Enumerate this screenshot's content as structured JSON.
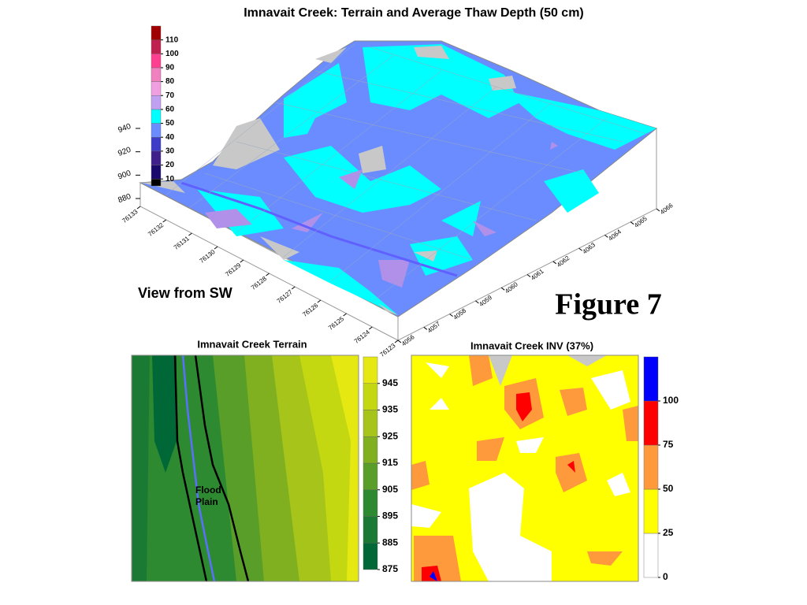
{
  "figure_label": "Figure 7",
  "chart_data": [
    {
      "type": "surface",
      "title": "Imnavait Creek: Terrain and Average Thaw Depth (50 cm)",
      "annotation": "View from SW",
      "xlim": [
        4056,
        4066
      ],
      "xticks": [
        4056,
        4057,
        4058,
        4059,
        4060,
        4061,
        4062,
        4063,
        4064,
        4065,
        4066
      ],
      "ylim": [
        76123,
        76133
      ],
      "yticks": [
        76123,
        76124,
        76125,
        76126,
        76127,
        76128,
        76129,
        76130,
        76131,
        76132,
        76133
      ],
      "zlim": [
        880,
        940
      ],
      "zticks": [
        880,
        900,
        920,
        940
      ],
      "colorbar": {
        "lim": [
          5,
          120
        ],
        "ticks": [
          10,
          20,
          30,
          40,
          50,
          60,
          70,
          80,
          90,
          100,
          110
        ],
        "colors": [
          "#000000",
          "#1a0a6e",
          "#40208a",
          "#3c3cc8",
          "#6b8cff",
          "#00ffff",
          "#c0a0f0",
          "#f0a0e0",
          "#f080c0",
          "#ff4090",
          "#c02050",
          "#a00000"
        ]
      }
    },
    {
      "type": "contour",
      "title": "Imnavait Creek Terrain",
      "annotation": [
        "Flood",
        "Plain"
      ],
      "colorbar": {
        "lim": [
          875,
          955
        ],
        "ticks": [
          875,
          885,
          895,
          905,
          915,
          925,
          935,
          945
        ],
        "colors": [
          "#006837",
          "#1a7a33",
          "#2e8a30",
          "#5a9e2a",
          "#80b020",
          "#a6c41a",
          "#c4d812",
          "#e6e812"
        ]
      }
    },
    {
      "type": "contour",
      "title": "Imnavait Creek INV (37%)",
      "colorbar": {
        "lim": [
          0,
          125
        ],
        "ticks": [
          0,
          25,
          50,
          75,
          100
        ],
        "colors": [
          "#ffffff",
          "#ffff00",
          "#ff9a3c",
          "#ff0000",
          "#0000ff"
        ]
      }
    }
  ]
}
